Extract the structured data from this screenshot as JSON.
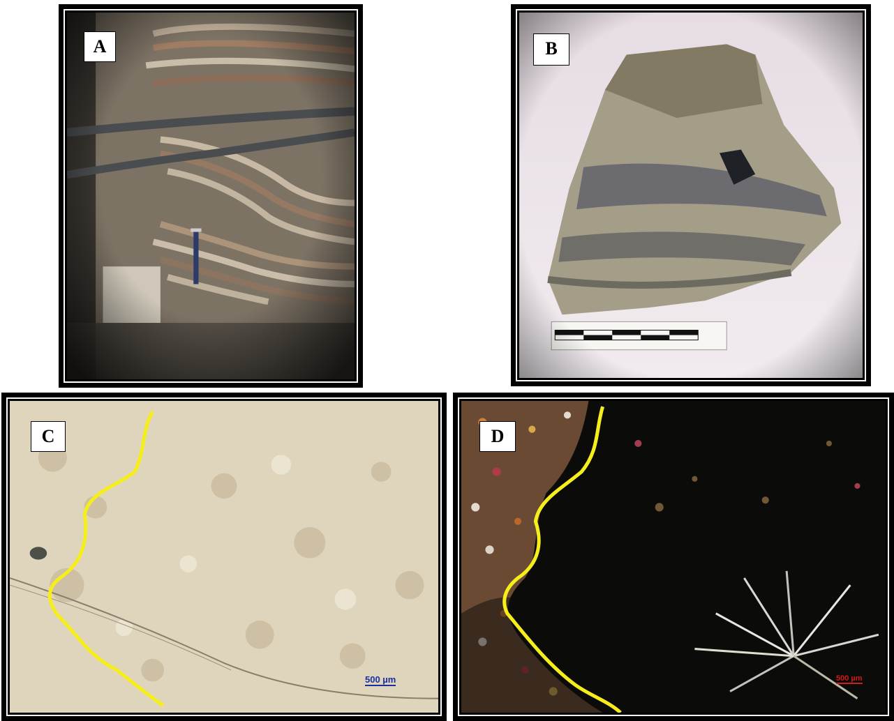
{
  "panels": {
    "a": {
      "label": "A"
    },
    "b": {
      "label": "B"
    },
    "c": {
      "label": "C",
      "scale_bar": "500 µm"
    },
    "d": {
      "label": "D",
      "scale_bar": "500 µm"
    }
  },
  "colors": {
    "trace_line": "#f5ee1c",
    "frame": "#000000"
  }
}
